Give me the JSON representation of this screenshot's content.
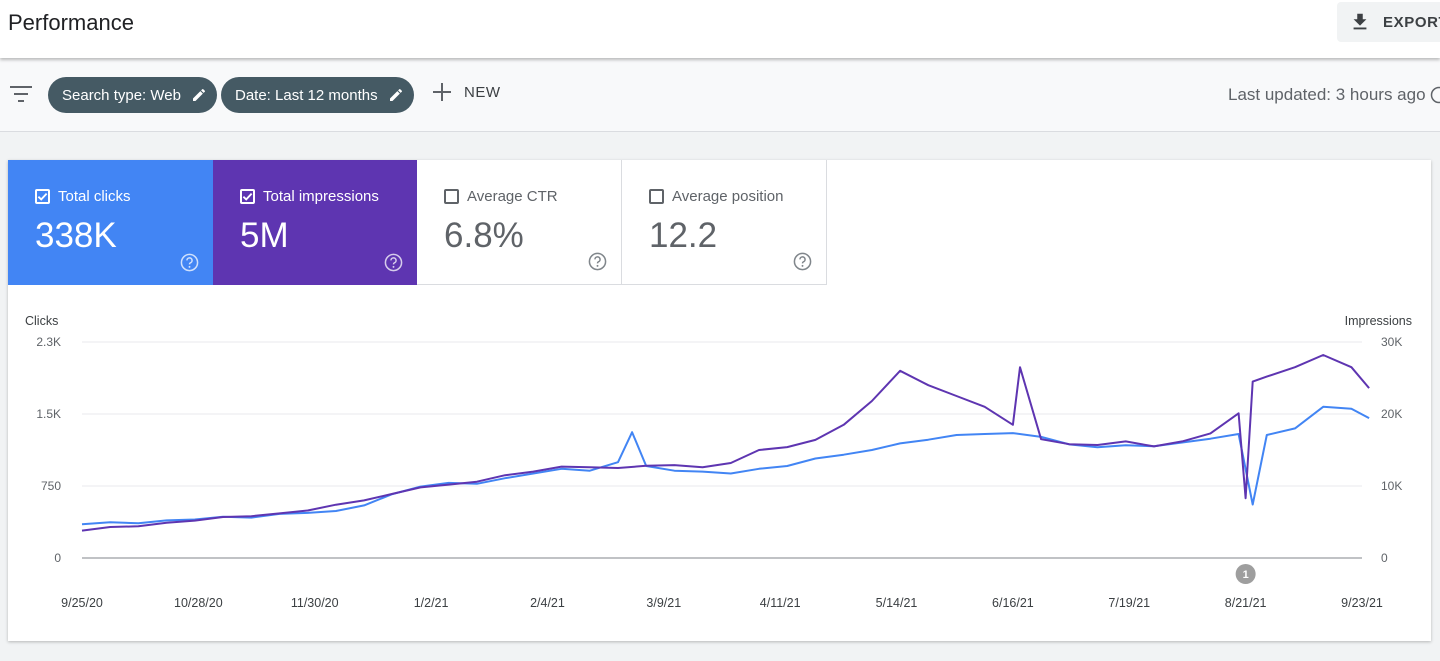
{
  "header": {
    "title": "Performance",
    "export_label": "EXPORT"
  },
  "filters": {
    "chips": [
      {
        "label": "Search type: Web"
      },
      {
        "label": "Date: Last 12 months"
      }
    ],
    "new_label": "NEW",
    "last_updated": "Last updated: 3 hours ago"
  },
  "metrics": [
    {
      "label": "Total clicks",
      "value": "338K",
      "selected": true
    },
    {
      "label": "Total impressions",
      "value": "5M",
      "selected": true
    },
    {
      "label": "Average CTR",
      "value": "6.8%",
      "selected": false
    },
    {
      "label": "Average position",
      "value": "12.2",
      "selected": false
    }
  ],
  "colors": {
    "clicks": "#4285f4",
    "impressions": "#5e35b1",
    "chip": "#455a64",
    "annotation": "#9e9e9e"
  },
  "chart_data": {
    "type": "line",
    "ylabel_left": "Clicks",
    "ylabel_right": "Impressions",
    "yticks_left": [
      "0",
      "750",
      "1.5K",
      "2.3K"
    ],
    "yticks_right": [
      "0",
      "10K",
      "20K",
      "30K"
    ],
    "ylim_left": [
      0,
      2300
    ],
    "ylim_right": [
      0,
      30000
    ],
    "xticks": [
      "9/25/20",
      "10/28/20",
      "11/30/20",
      "1/2/21",
      "2/4/21",
      "3/9/21",
      "4/11/21",
      "5/14/21",
      "6/16/21",
      "7/19/21",
      "8/21/21",
      "9/23/21"
    ],
    "annotation": {
      "label": "1",
      "x": "8/21/21"
    },
    "series": [
      {
        "name": "Clicks",
        "axis": "left",
        "x": [
          "9/25/20",
          "10/3/20",
          "10/11/20",
          "10/19/20",
          "10/27/20",
          "11/4/20",
          "11/12/20",
          "11/20/20",
          "11/28/20",
          "12/6/20",
          "12/14/20",
          "12/22/20",
          "12/30/20",
          "1/7/21",
          "1/15/21",
          "1/23/21",
          "1/31/21",
          "2/8/21",
          "2/16/21",
          "2/24/21",
          "2/28/21",
          "3/4/21",
          "3/12/21",
          "3/20/21",
          "3/28/21",
          "4/5/21",
          "4/13/21",
          "4/21/21",
          "4/29/21",
          "5/7/21",
          "5/15/21",
          "5/23/21",
          "5/31/21",
          "6/8/21",
          "6/16/21",
          "6/24/21",
          "7/2/21",
          "7/10/21",
          "7/18/21",
          "7/26/21",
          "8/3/21",
          "8/11/21",
          "8/19/21",
          "8/23/21",
          "8/27/21",
          "9/4/21",
          "9/12/21",
          "9/20/21",
          "9/25/21"
        ],
        "y": [
          360,
          380,
          370,
          400,
          410,
          440,
          430,
          470,
          480,
          500,
          560,
          680,
          760,
          800,
          790,
          850,
          900,
          950,
          930,
          1020,
          1340,
          980,
          930,
          920,
          900,
          950,
          980,
          1060,
          1100,
          1150,
          1220,
          1260,
          1310,
          1320,
          1330,
          1290,
          1210,
          1180,
          1200,
          1190,
          1230,
          1270,
          1320,
          570,
          1310,
          1380,
          1610,
          1590,
          1490
        ]
      },
      {
        "name": "Impressions",
        "axis": "right",
        "x": [
          "9/25/20",
          "10/3/20",
          "10/11/20",
          "10/19/20",
          "10/27/20",
          "11/4/20",
          "11/12/20",
          "11/20/20",
          "11/28/20",
          "12/6/20",
          "12/14/20",
          "12/22/20",
          "12/30/20",
          "1/7/21",
          "1/15/21",
          "1/23/21",
          "1/31/21",
          "2/8/21",
          "2/16/21",
          "2/24/21",
          "3/4/21",
          "3/12/21",
          "3/20/21",
          "3/28/21",
          "4/5/21",
          "4/13/21",
          "4/21/21",
          "4/29/21",
          "5/7/21",
          "5/15/21",
          "5/23/21",
          "5/31/21",
          "6/8/21",
          "6/16/21",
          "6/18/21",
          "6/24/21",
          "7/2/21",
          "7/10/21",
          "7/18/21",
          "7/26/21",
          "8/3/21",
          "8/11/21",
          "8/19/21",
          "8/21/21",
          "8/23/21",
          "8/27/21",
          "9/4/21",
          "9/12/21",
          "9/20/21",
          "9/25/21"
        ],
        "y": [
          3800,
          4300,
          4400,
          4900,
          5200,
          5700,
          5800,
          6200,
          6600,
          7400,
          8000,
          8900,
          9800,
          10200,
          10600,
          11500,
          12000,
          12700,
          12600,
          12500,
          12800,
          12900,
          12600,
          13200,
          15000,
          15400,
          16400,
          18500,
          21800,
          26000,
          24000,
          22500,
          21000,
          18500,
          26500,
          16500,
          15800,
          15700,
          16200,
          15500,
          16200,
          17300,
          20100,
          8300,
          24500,
          25200,
          26500,
          28200,
          26500,
          23600
        ]
      }
    ]
  }
}
